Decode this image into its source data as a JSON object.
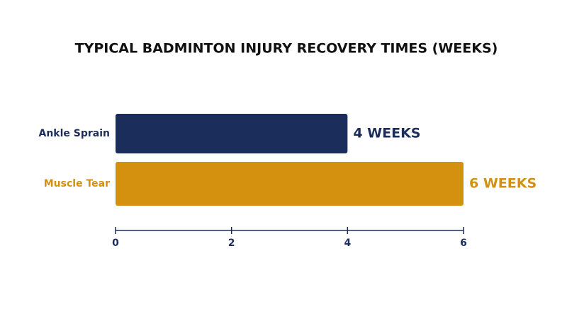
{
  "chart_data": {
    "type": "bar",
    "orientation": "horizontal",
    "title": "TYPICAL BADMINTON INJURY RECOVERY TIMES (WEEKS)",
    "categories": [
      "Ankle Sprain",
      "Muscle Tear"
    ],
    "values": [
      4,
      6
    ],
    "value_labels": [
      "4 WEEKS",
      "6 WEEKS"
    ],
    "colors": [
      "#1b2d5b",
      "#d4900f"
    ],
    "xlim": [
      0,
      6
    ],
    "xticks": [
      0,
      2,
      4,
      6
    ],
    "grid": false
  }
}
